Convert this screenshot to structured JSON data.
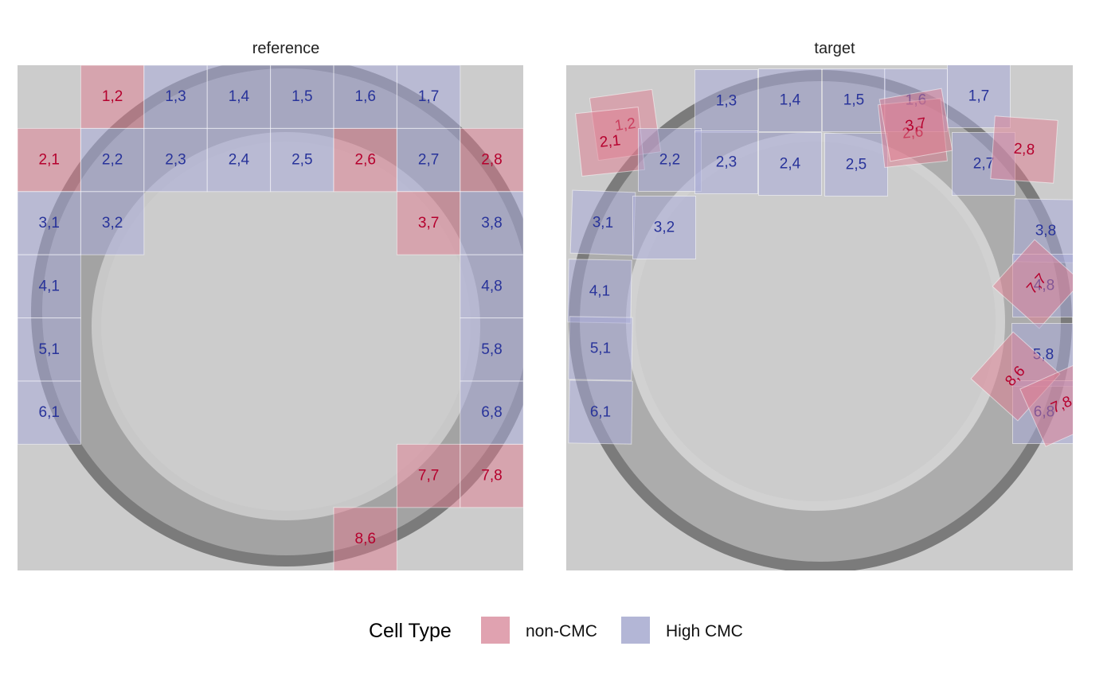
{
  "panels": [
    {
      "title": "reference",
      "cells": [
        {
          "label": "1,2",
          "type": "non-CMC",
          "row": 1,
          "col": 2
        },
        {
          "label": "1,3",
          "type": "High CMC",
          "row": 1,
          "col": 3
        },
        {
          "label": "1,4",
          "type": "High CMC",
          "row": 1,
          "col": 4
        },
        {
          "label": "1,5",
          "type": "High CMC",
          "row": 1,
          "col": 5
        },
        {
          "label": "1,6",
          "type": "High CMC",
          "row": 1,
          "col": 6
        },
        {
          "label": "1,7",
          "type": "High CMC",
          "row": 1,
          "col": 7
        },
        {
          "label": "2,1",
          "type": "non-CMC",
          "row": 2,
          "col": 1
        },
        {
          "label": "2,2",
          "type": "High CMC",
          "row": 2,
          "col": 2
        },
        {
          "label": "2,3",
          "type": "High CMC",
          "row": 2,
          "col": 3
        },
        {
          "label": "2,4",
          "type": "High CMC",
          "row": 2,
          "col": 4
        },
        {
          "label": "2,5",
          "type": "High CMC",
          "row": 2,
          "col": 5
        },
        {
          "label": "2,6",
          "type": "non-CMC",
          "row": 2,
          "col": 6
        },
        {
          "label": "2,7",
          "type": "High CMC",
          "row": 2,
          "col": 7
        },
        {
          "label": "2,8",
          "type": "non-CMC",
          "row": 2,
          "col": 8
        },
        {
          "label": "3,1",
          "type": "High CMC",
          "row": 3,
          "col": 1
        },
        {
          "label": "3,2",
          "type": "High CMC",
          "row": 3,
          "col": 2
        },
        {
          "label": "3,7",
          "type": "non-CMC",
          "row": 3,
          "col": 7
        },
        {
          "label": "3,8",
          "type": "High CMC",
          "row": 3,
          "col": 8
        },
        {
          "label": "4,1",
          "type": "High CMC",
          "row": 4,
          "col": 1
        },
        {
          "label": "4,8",
          "type": "High CMC",
          "row": 4,
          "col": 8
        },
        {
          "label": "5,1",
          "type": "High CMC",
          "row": 5,
          "col": 1
        },
        {
          "label": "5,8",
          "type": "High CMC",
          "row": 5,
          "col": 8
        },
        {
          "label": "6,1",
          "type": "High CMC",
          "row": 6,
          "col": 1
        },
        {
          "label": "6,8",
          "type": "High CMC",
          "row": 6,
          "col": 8
        },
        {
          "label": "7,7",
          "type": "non-CMC",
          "row": 7,
          "col": 7
        },
        {
          "label": "7,8",
          "type": "non-CMC",
          "row": 7,
          "col": 8
        },
        {
          "label": "8,6",
          "type": "non-CMC",
          "row": 8,
          "col": 6
        }
      ]
    },
    {
      "title": "target",
      "cells": [
        {
          "label": "1,2",
          "type": "non-CMC"
        },
        {
          "label": "2,1",
          "type": "non-CMC"
        },
        {
          "label": "1,3",
          "type": "High CMC"
        },
        {
          "label": "1,4",
          "type": "High CMC"
        },
        {
          "label": "1,5",
          "type": "High CMC"
        },
        {
          "label": "1,6",
          "type": "High CMC"
        },
        {
          "label": "1,7",
          "type": "High CMC"
        },
        {
          "label": "2,2",
          "type": "High CMC"
        },
        {
          "label": "2,3",
          "type": "High CMC"
        },
        {
          "label": "2,4",
          "type": "High CMC"
        },
        {
          "label": "2,5",
          "type": "High CMC"
        },
        {
          "label": "2,6",
          "type": "non-CMC"
        },
        {
          "label": "3,7",
          "type": "non-CMC"
        },
        {
          "label": "2,7",
          "type": "High CMC"
        },
        {
          "label": "2,8",
          "type": "non-CMC"
        },
        {
          "label": "3,1",
          "type": "High CMC"
        },
        {
          "label": "3,2",
          "type": "High CMC"
        },
        {
          "label": "3,8",
          "type": "High CMC"
        },
        {
          "label": "4,1",
          "type": "High CMC"
        },
        {
          "label": "4,8",
          "type": "High CMC"
        },
        {
          "label": "7,7",
          "type": "non-CMC"
        },
        {
          "label": "5,1",
          "type": "High CMC"
        },
        {
          "label": "5,8",
          "type": "High CMC"
        },
        {
          "label": "6,1",
          "type": "High CMC"
        },
        {
          "label": "6,8",
          "type": "High CMC"
        },
        {
          "label": "8,6",
          "type": "non-CMC"
        },
        {
          "label": "7,8",
          "type": "non-CMC"
        }
      ]
    }
  ],
  "legend": {
    "title": "Cell Type",
    "items": [
      {
        "label": "non-CMC",
        "color": "#e0a2b0"
      },
      {
        "label": "High CMC",
        "color": "#b3b6d6"
      }
    ]
  },
  "colors": {
    "panel_background": "#cccccc",
    "non_cmc_fill": "#e07b8f",
    "high_cmc_fill": "#a9acd8",
    "non_cmc_text": "#b5002d",
    "high_cmc_text": "#28339a"
  }
}
